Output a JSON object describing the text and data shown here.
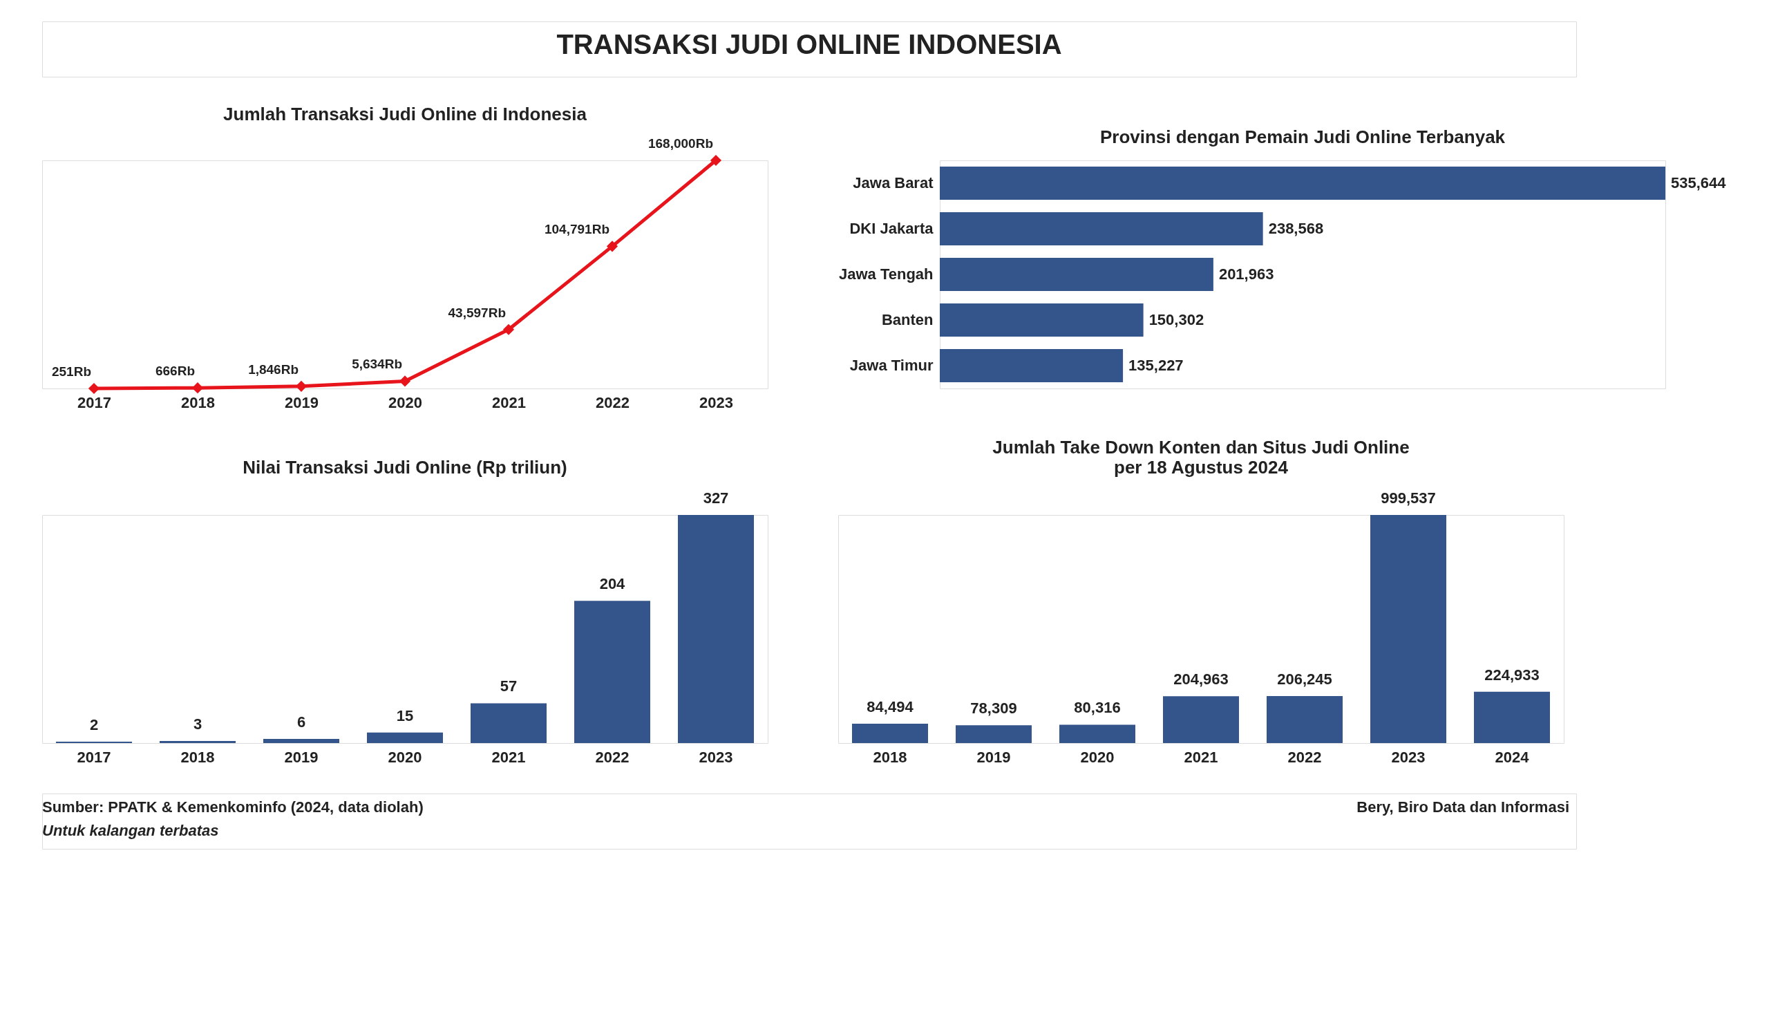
{
  "chart_data": [
    {
      "type": "other",
      "title": "TRANSAKSI JUDI ONLINE INDONESIA"
    },
    {
      "type": "line",
      "title": "Jumlah Transaksi Judi Online di Indonesia",
      "categories": [
        "2017",
        "2018",
        "2019",
        "2020",
        "2021",
        "2022",
        "2023"
      ],
      "values": [
        251,
        666,
        1846,
        5634,
        43597,
        104791,
        168000
      ],
      "color": "#e8141b",
      "marker": "diamond",
      "value_labels": [
        "251Rb",
        "666Rb",
        "1,846Rb",
        "5,634Rb",
        "43,597Rb",
        "104,791Rb",
        "168,000Rb"
      ]
    },
    {
      "type": "bar",
      "orientation": "horizontal",
      "title": "Provinsi dengan Pemain Judi Online Terbanyak",
      "categories": [
        "Jawa Barat",
        "DKI Jakarta",
        "Jawa Tengah",
        "Banten",
        "Jawa Timur"
      ],
      "values": [
        535644,
        238568,
        201963,
        150302,
        135227
      ],
      "color": "#34558b",
      "value_labels": [
        "535,644",
        "238,568",
        "201,963",
        "150,302",
        "135,227"
      ]
    },
    {
      "type": "bar",
      "title": "Nilai Transaksi Judi Online (Rp triliun)",
      "categories": [
        "2017",
        "2018",
        "2019",
        "2020",
        "2021",
        "2022",
        "2023"
      ],
      "values": [
        2,
        3,
        6,
        15,
        57,
        204,
        327
      ],
      "color": "#34558b",
      "data_labels": true
    },
    {
      "type": "bar",
      "title": "Jumlah Take Down Konten dan Situs Judi Online",
      "subtitle": "per 18 Agustus 2024",
      "categories": [
        "2018",
        "2019",
        "2020",
        "2021",
        "2022",
        "2023",
        "2024"
      ],
      "values": [
        84494,
        78309,
        80316,
        204963,
        206245,
        999537,
        224933
      ],
      "color": "#34558b",
      "value_labels": [
        "84,494",
        "78,309",
        "80,316",
        "204,963",
        "206,245",
        "999,537",
        "224,933"
      ]
    },
    {
      "type": "other",
      "annotations": [
        "Sumber: PPATK & Kemenkominfo (2024, data diolah)",
        "Untuk kalangan terbatas",
        "Bery, Biro Data dan Informasi"
      ]
    }
  ]
}
